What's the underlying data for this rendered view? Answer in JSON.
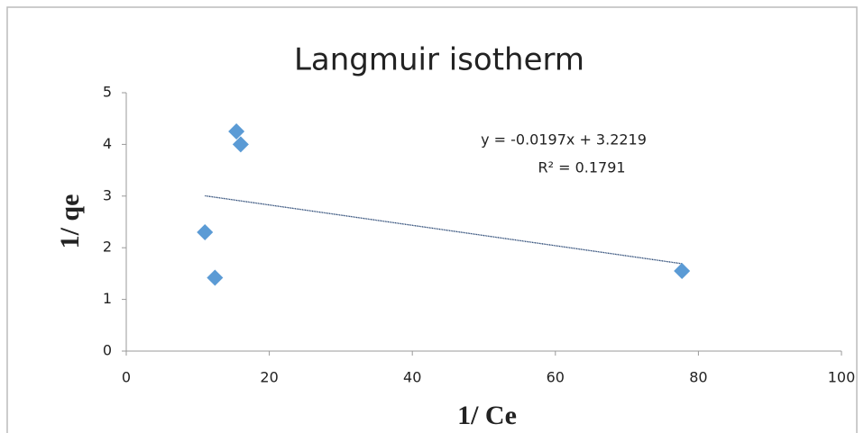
{
  "chart_data": {
    "type": "scatter",
    "title": "Langmuir isotherm",
    "x_label": "1/ Ce",
    "y_label": "1/ qe",
    "series": [
      {
        "name": "1/ qe",
        "color": "#5b9bd5",
        "x": [
          15.4,
          16.0,
          11.0,
          12.4,
          77.7
        ],
        "values": [
          4.25,
          4.0,
          2.3,
          1.42,
          1.55
        ]
      }
    ],
    "trendline": {
      "slope": -0.0197,
      "intercept": 3.2219,
      "color": "#1f3f6e"
    },
    "annotations": [
      "y = -0.0197x + 3.2219",
      "R² = 0.1791"
    ],
    "xlim": [
      0,
      100
    ],
    "xticks": [
      0,
      20,
      40,
      60,
      80,
      100
    ],
    "ylim": [
      0,
      5
    ],
    "yticks": [
      0,
      1,
      2,
      3,
      4,
      5
    ],
    "grid": false
  }
}
